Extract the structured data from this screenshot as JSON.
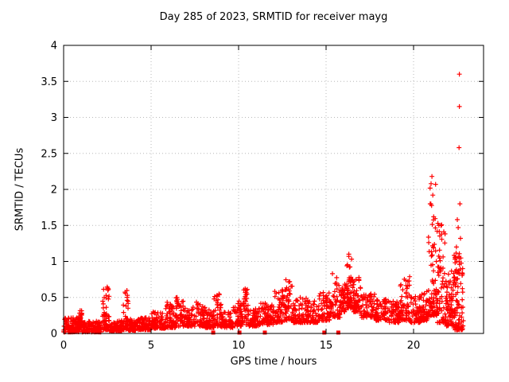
{
  "chart_data": {
    "type": "scatter",
    "title": "Day 285 of 2023, SRMTID for receiver mayg",
    "xlabel": "GPS time / hours",
    "ylabel": "SRMTID / TECUs",
    "xlim": [
      0,
      24
    ],
    "ylim": [
      0,
      4
    ],
    "xticks": [
      {
        "v": 0,
        "l": "0"
      },
      {
        "v": 5,
        "l": "5"
      },
      {
        "v": 10,
        "l": "10"
      },
      {
        "v": 15,
        "l": "15"
      },
      {
        "v": 20,
        "l": "20"
      }
    ],
    "yticks": [
      {
        "v": 0,
        "l": "0"
      },
      {
        "v": 0.5,
        "l": "0.5"
      },
      {
        "v": 1,
        "l": "1"
      },
      {
        "v": 1.5,
        "l": "1.5"
      },
      {
        "v": 2,
        "l": "2"
      },
      {
        "v": 2.5,
        "l": "2.5"
      },
      {
        "v": 3,
        "l": "3"
      },
      {
        "v": 3.5,
        "l": "3.5"
      },
      {
        "v": 4,
        "l": "4"
      }
    ],
    "grid": true,
    "marker": "plus",
    "color": "#ff0000",
    "grid_color": "#b8b8b8",
    "seed": 20230285,
    "band_segments": [
      [
        0.0,
        0.9,
        0.02,
        0.22,
        110,
        2.0
      ],
      [
        0.85,
        1.05,
        0.05,
        0.32,
        35,
        1.6
      ],
      [
        1.05,
        2.15,
        0.02,
        0.18,
        120,
        2.0
      ],
      [
        2.2,
        2.6,
        0.05,
        0.65,
        55,
        2.4
      ],
      [
        2.6,
        3.35,
        0.03,
        0.18,
        85,
        2.0
      ],
      [
        3.4,
        3.7,
        0.05,
        0.65,
        45,
        2.2
      ],
      [
        3.7,
        4.1,
        0.04,
        0.2,
        45,
        2.0
      ],
      [
        4.1,
        5.0,
        0.05,
        0.22,
        100,
        2.0
      ],
      [
        5.0,
        5.8,
        0.07,
        0.3,
        85,
        2.0
      ],
      [
        5.8,
        6.4,
        0.08,
        0.45,
        65,
        2.0
      ],
      [
        6.4,
        6.9,
        0.1,
        0.5,
        55,
        2.0
      ],
      [
        6.9,
        7.4,
        0.1,
        0.35,
        55,
        1.8
      ],
      [
        7.4,
        8.1,
        0.1,
        0.45,
        70,
        2.0
      ],
      [
        8.1,
        8.6,
        0.08,
        0.35,
        55,
        1.8
      ],
      [
        8.6,
        9.0,
        0.1,
        0.55,
        40,
        2.0
      ],
      [
        9.0,
        9.7,
        0.08,
        0.3,
        65,
        1.8
      ],
      [
        9.7,
        10.15,
        0.1,
        0.45,
        45,
        1.8
      ],
      [
        10.15,
        10.55,
        0.12,
        0.65,
        45,
        2.0
      ],
      [
        10.55,
        11.2,
        0.1,
        0.35,
        65,
        1.8
      ],
      [
        11.2,
        12.0,
        0.12,
        0.42,
        80,
        1.8
      ],
      [
        12.0,
        12.6,
        0.15,
        0.62,
        60,
        1.8
      ],
      [
        12.6,
        13.1,
        0.18,
        0.78,
        55,
        1.8
      ],
      [
        13.1,
        13.9,
        0.15,
        0.5,
        75,
        1.8
      ],
      [
        13.9,
        14.6,
        0.15,
        0.46,
        65,
        1.8
      ],
      [
        14.6,
        15.2,
        0.18,
        0.6,
        60,
        1.8
      ],
      [
        15.2,
        15.85,
        0.22,
        0.85,
        60,
        1.8
      ],
      [
        15.85,
        16.15,
        0.3,
        0.72,
        35,
        1.6
      ],
      [
        16.15,
        16.5,
        0.35,
        1.08,
        55,
        1.7
      ],
      [
        16.5,
        17.0,
        0.3,
        0.8,
        55,
        1.8
      ],
      [
        17.0,
        17.8,
        0.22,
        0.55,
        70,
        1.8
      ],
      [
        17.8,
        18.5,
        0.18,
        0.48,
        65,
        1.8
      ],
      [
        18.5,
        19.2,
        0.15,
        0.45,
        65,
        1.8
      ],
      [
        19.2,
        19.8,
        0.18,
        0.8,
        60,
        2.0
      ],
      [
        19.8,
        20.45,
        0.15,
        0.52,
        60,
        1.8
      ],
      [
        20.45,
        20.85,
        0.18,
        0.6,
        45,
        1.8
      ],
      [
        20.85,
        21.35,
        0.25,
        2.2,
        85,
        2.6
      ],
      [
        21.35,
        21.85,
        0.15,
        1.55,
        70,
        2.6
      ],
      [
        21.85,
        22.3,
        0.1,
        0.9,
        70,
        2.2
      ],
      [
        22.3,
        22.85,
        0.05,
        1.15,
        95,
        2.0
      ]
    ],
    "outliers": [
      [
        22.62,
        3.6
      ],
      [
        22.62,
        3.15
      ],
      [
        22.6,
        2.58
      ],
      [
        21.05,
        2.18
      ],
      [
        21.0,
        2.08
      ],
      [
        21.1,
        1.92
      ],
      [
        20.95,
        1.8
      ],
      [
        22.65,
        1.8
      ],
      [
        21.15,
        1.62
      ],
      [
        22.5,
        1.58
      ],
      [
        21.45,
        1.5
      ],
      [
        22.55,
        1.47
      ],
      [
        21.6,
        1.38
      ],
      [
        22.68,
        1.32
      ],
      [
        22.45,
        1.2
      ],
      [
        16.3,
        1.1
      ],
      [
        22.4,
        1.05
      ],
      [
        21.3,
        1.0
      ]
    ],
    "event_markers": {
      "shape": "square",
      "y": 0.012,
      "x": [
        8.55,
        10.05,
        11.5,
        14.9,
        15.7
      ]
    }
  }
}
